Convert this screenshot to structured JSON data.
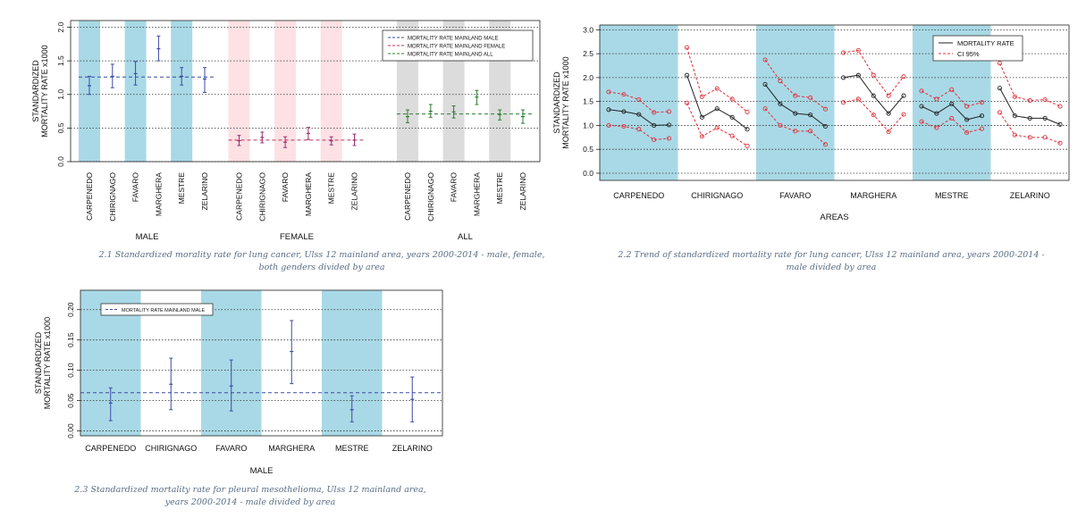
{
  "colors": {
    "male_bg": "#a9d9e6",
    "female_bg": "#fde1e4",
    "all_bg": "#dcdcdc",
    "male": "#3a4aa8",
    "female": "#9b2a6e",
    "all": "#2e7d32",
    "red": "#e0303a",
    "line": "#222222"
  },
  "captions": {
    "c1": [
      "2.1 Standardized morality rate for lung cancer, Ulss 12 mainland area, years 2000-2014 - male, female,",
      "both genders divided by area"
    ],
    "c2": [
      "2.2 Trend of standardized mortality rate for lung cancer, Ulss 12 mainland area, years 2000-2014 -",
      "male divided by area"
    ],
    "c3": [
      "2.3 Standardized mortality rate for pleural mesothelioma, Ulss 12 mainland area,",
      "years 2000-2014 - male divided by area"
    ]
  },
  "chart_data": [
    {
      "type": "errorbar",
      "ylabel": [
        "STANDARDIZED",
        "MORTALITY RATE x1000"
      ],
      "ylim": [
        0,
        2.1
      ],
      "yticks": [
        "0.0",
        "0.5",
        "1.0",
        "1.5",
        "2.0"
      ],
      "ytick_values": [
        0,
        0.5,
        1,
        1.5,
        2
      ],
      "grid": true,
      "legend_position": "top-right",
      "legend": [
        {
          "label": "MORTALITY RATE MAINLAND MALE",
          "color": "#3a4aa8"
        },
        {
          "label": "MORTALITY RATE MAINLAND FEMALE",
          "color": "#c0305a"
        },
        {
          "label": "MORTALITY RATE MAINLAND ALL",
          "color": "#2e7d32"
        }
      ],
      "groups": [
        {
          "name": "MALE",
          "ref": 1.26,
          "categories": [
            "CARPENEDO",
            "CHIRIGNAGO",
            "FAVARO",
            "MARGHERA",
            "MESTRE",
            "ZELARINO"
          ],
          "values": [
            1.13,
            1.27,
            1.31,
            1.68,
            1.27,
            1.23
          ],
          "lower": [
            1.0,
            1.1,
            1.14,
            1.5,
            1.14,
            1.03
          ],
          "upper": [
            1.27,
            1.45,
            1.49,
            1.87,
            1.4,
            1.4
          ]
        },
        {
          "name": "FEMALE",
          "ref": 0.32,
          "categories": [
            "CARPENEDO",
            "CHIRIGNAGO",
            "FAVARO",
            "MARGHERA",
            "MESTRE",
            "ZELARINO"
          ],
          "values": [
            0.31,
            0.36,
            0.29,
            0.42,
            0.31,
            0.32
          ],
          "lower": [
            0.24,
            0.28,
            0.21,
            0.33,
            0.25,
            0.24
          ],
          "upper": [
            0.39,
            0.44,
            0.37,
            0.51,
            0.37,
            0.41
          ]
        },
        {
          "name": "ALL",
          "ref": 0.71,
          "categories": [
            "CARPENEDO",
            "CHIRIGNAGO",
            "FAVARO",
            "MARGHERA",
            "MESTRE",
            "ZELARINO"
          ],
          "values": [
            0.67,
            0.75,
            0.74,
            0.96,
            0.7,
            0.67
          ],
          "lower": [
            0.58,
            0.66,
            0.65,
            0.85,
            0.62,
            0.57
          ],
          "upper": [
            0.77,
            0.85,
            0.83,
            1.06,
            0.77,
            0.77
          ]
        }
      ],
      "highlight_categories": [
        "CARPENEDO",
        "FAVARO",
        "MESTRE"
      ]
    },
    {
      "type": "line",
      "ylabel": [
        "STANDARDIZED",
        "MORTALITY RATE x1000"
      ],
      "xlabel": "AREAS",
      "ylim": [
        -0.15,
        3.1
      ],
      "yticks": [
        "0.0",
        "0.5",
        "1.0",
        "1.5",
        "2.0",
        "2.5",
        "3.0"
      ],
      "ytick_values": [
        0,
        0.5,
        1,
        1.5,
        2,
        2.5,
        3
      ],
      "grid": true,
      "legend_position": "top-right",
      "legend": [
        {
          "label": "MORTALITY RATE",
          "color": "#222222"
        },
        {
          "label": "CI 95%",
          "color": "#e0303a"
        }
      ],
      "categories": [
        "CARPENEDO",
        "CHIRIGNAGO",
        "FAVARO",
        "MARGHERA",
        "MESTRE",
        "ZELARINO"
      ],
      "highlight_categories": [
        "CARPENEDO",
        "FAVARO",
        "MESTRE"
      ],
      "series": [
        {
          "rate": [
            1.33,
            1.29,
            1.23,
            1.0,
            1.01
          ],
          "lower": [
            1.0,
            0.98,
            0.92,
            0.7,
            0.73
          ],
          "upper": [
            1.7,
            1.65,
            1.54,
            1.27,
            1.29
          ]
        },
        {
          "rate": [
            2.05,
            1.17,
            1.35,
            1.17,
            0.92
          ],
          "lower": [
            1.47,
            0.77,
            0.95,
            0.78,
            0.57
          ],
          "upper": [
            2.63,
            1.6,
            1.77,
            1.55,
            1.28
          ]
        },
        {
          "rate": [
            1.86,
            1.45,
            1.25,
            1.22,
            0.98
          ],
          "lower": [
            1.35,
            1.0,
            0.88,
            0.88,
            0.6
          ],
          "upper": [
            2.37,
            1.93,
            1.62,
            1.58,
            1.34
          ]
        },
        {
          "rate": [
            2.0,
            2.05,
            1.62,
            1.25,
            1.62
          ],
          "lower": [
            1.48,
            1.55,
            1.22,
            0.87,
            1.23
          ],
          "upper": [
            2.52,
            2.57,
            2.05,
            1.62,
            2.02
          ]
        },
        {
          "rate": [
            1.4,
            1.25,
            1.45,
            1.12,
            1.2
          ],
          "lower": [
            1.08,
            0.95,
            1.15,
            0.85,
            0.93
          ],
          "upper": [
            1.72,
            1.55,
            1.75,
            1.4,
            1.48
          ]
        },
        {
          "rate": [
            1.78,
            1.2,
            1.15,
            1.15,
            1.02
          ],
          "lower": [
            1.27,
            0.8,
            0.75,
            0.75,
            0.63
          ],
          "upper": [
            2.3,
            1.6,
            1.52,
            1.54,
            1.4
          ]
        }
      ]
    },
    {
      "type": "errorbar",
      "ylabel": [
        "STANDARDIZED",
        "MORTALITY RATE x1000"
      ],
      "xlabel": "MALE",
      "ylim": [
        -0.008,
        0.232
      ],
      "yticks": [
        "0.00",
        "0.05",
        "0.10",
        "0.15",
        "0.20"
      ],
      "ytick_values": [
        0,
        0.05,
        0.1,
        0.15,
        0.2
      ],
      "grid": true,
      "legend_position": "top-left",
      "legend": [
        {
          "label": "MORTALITY RATE MAINLAND MALE",
          "color": "#3a4aa8"
        }
      ],
      "ref": 0.063,
      "categories": [
        "CARPENEDO",
        "CHIRIGNAGO",
        "FAVARO",
        "MARGHERA",
        "MESTRE",
        "ZELARINO"
      ],
      "values": [
        0.046,
        0.077,
        0.074,
        0.131,
        0.035,
        0.052
      ],
      "lower": [
        0.017,
        0.035,
        0.033,
        0.078,
        0.015,
        0.015
      ],
      "upper": [
        0.071,
        0.12,
        0.117,
        0.182,
        0.058,
        0.089
      ],
      "highlight_categories": [
        "CARPENEDO",
        "FAVARO",
        "MESTRE"
      ]
    }
  ]
}
